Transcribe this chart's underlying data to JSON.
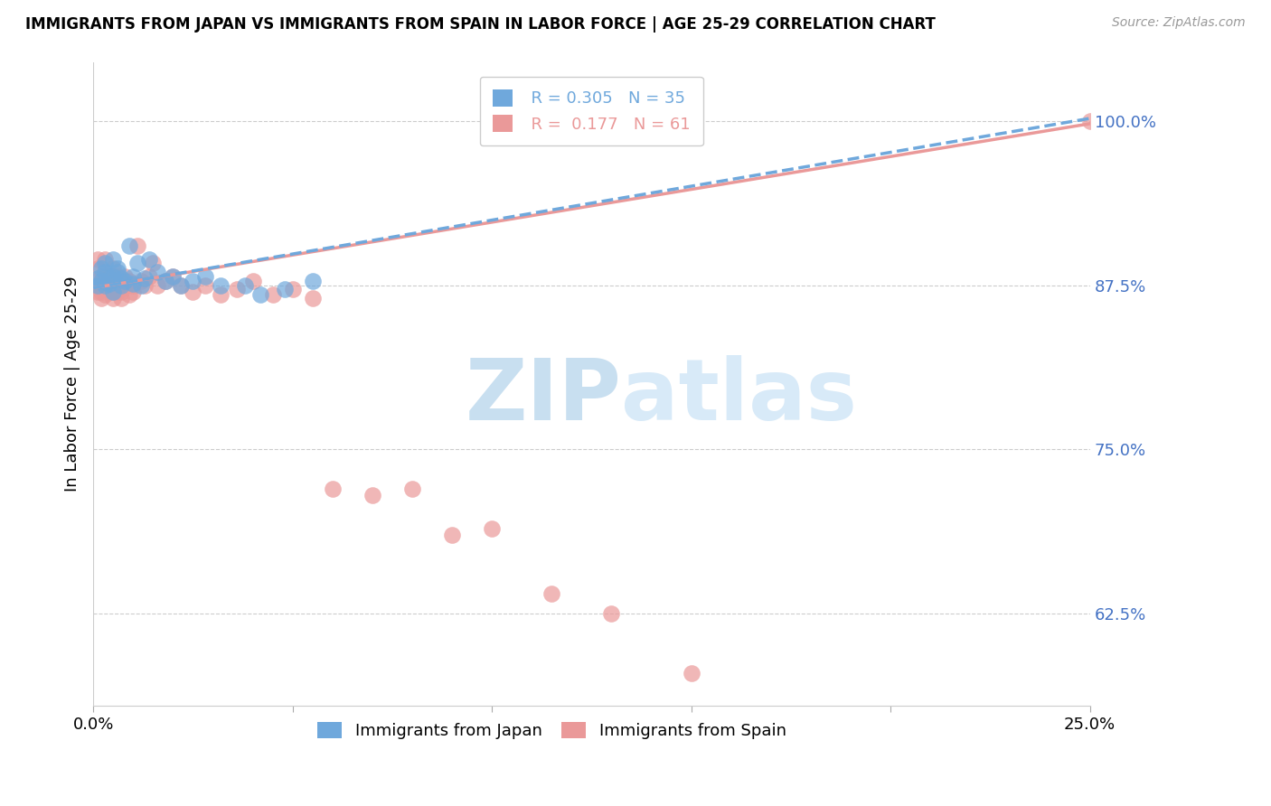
{
  "title": "IMMIGRANTS FROM JAPAN VS IMMIGRANTS FROM SPAIN IN LABOR FORCE | AGE 25-29 CORRELATION CHART",
  "source": "Source: ZipAtlas.com",
  "ylabel": "In Labor Force | Age 25-29",
  "xlim": [
    0.0,
    0.25
  ],
  "ylim": [
    0.555,
    1.045
  ],
  "xticks": [
    0.0,
    0.05,
    0.1,
    0.15,
    0.2,
    0.25
  ],
  "xticklabels": [
    "0.0%",
    "",
    "",
    "",
    "",
    "25.0%"
  ],
  "yticks_right": [
    0.625,
    0.75,
    0.875,
    1.0
  ],
  "ytick_labels_right": [
    "62.5%",
    "75.0%",
    "87.5%",
    "100.0%"
  ],
  "japan_color": "#6fa8dc",
  "spain_color": "#ea9999",
  "japan_R": 0.305,
  "japan_N": 35,
  "spain_R": 0.177,
  "spain_N": 61,
  "japan_scatter_x": [
    0.001,
    0.001,
    0.002,
    0.002,
    0.003,
    0.003,
    0.003,
    0.004,
    0.004,
    0.005,
    0.005,
    0.005,
    0.006,
    0.006,
    0.007,
    0.007,
    0.008,
    0.009,
    0.01,
    0.01,
    0.011,
    0.012,
    0.013,
    0.014,
    0.016,
    0.018,
    0.02,
    0.022,
    0.025,
    0.028,
    0.032,
    0.038,
    0.042,
    0.048,
    0.055
  ],
  "japan_scatter_y": [
    0.875,
    0.88,
    0.888,
    0.878,
    0.875,
    0.892,
    0.885,
    0.88,
    0.876,
    0.882,
    0.87,
    0.895,
    0.885,
    0.888,
    0.875,
    0.88,
    0.878,
    0.905,
    0.882,
    0.876,
    0.892,
    0.875,
    0.88,
    0.895,
    0.885,
    0.878,
    0.882,
    0.875,
    0.878,
    0.882,
    0.875,
    0.875,
    0.868,
    0.872,
    0.878
  ],
  "spain_scatter_x": [
    0.001,
    0.001,
    0.001,
    0.001,
    0.002,
    0.002,
    0.002,
    0.002,
    0.002,
    0.003,
    0.003,
    0.003,
    0.003,
    0.004,
    0.004,
    0.004,
    0.004,
    0.005,
    0.005,
    0.005,
    0.005,
    0.005,
    0.006,
    0.006,
    0.006,
    0.006,
    0.007,
    0.007,
    0.007,
    0.008,
    0.008,
    0.009,
    0.009,
    0.01,
    0.01,
    0.011,
    0.012,
    0.013,
    0.014,
    0.015,
    0.016,
    0.018,
    0.02,
    0.022,
    0.025,
    0.028,
    0.032,
    0.036,
    0.04,
    0.045,
    0.05,
    0.055,
    0.06,
    0.07,
    0.08,
    0.09,
    0.1,
    0.115,
    0.13,
    0.15,
    0.25
  ],
  "spain_scatter_y": [
    0.875,
    0.888,
    0.895,
    0.87,
    0.882,
    0.875,
    0.87,
    0.865,
    0.878,
    0.875,
    0.868,
    0.882,
    0.895,
    0.878,
    0.87,
    0.882,
    0.875,
    0.888,
    0.875,
    0.87,
    0.865,
    0.882,
    0.876,
    0.87,
    0.882,
    0.875,
    0.865,
    0.878,
    0.87,
    0.882,
    0.875,
    0.868,
    0.878,
    0.875,
    0.87,
    0.905,
    0.878,
    0.875,
    0.882,
    0.892,
    0.875,
    0.878,
    0.882,
    0.875,
    0.87,
    0.875,
    0.868,
    0.872,
    0.878,
    0.868,
    0.872,
    0.865,
    0.72,
    0.715,
    0.72,
    0.685,
    0.69,
    0.64,
    0.625,
    0.58,
    1.0
  ],
  "grid_color": "#cccccc",
  "background_color": "#ffffff",
  "watermark_text_zip": "ZIP",
  "watermark_text_atlas": "atlas",
  "watermark_color": "#ddeeff",
  "axis_color": "#4472c4",
  "trend_japan_x0": 0.0,
  "trend_japan_y0": 0.873,
  "trend_japan_x1": 0.25,
  "trend_japan_y1": 1.002,
  "trend_spain_x0": 0.0,
  "trend_spain_y0": 0.873,
  "trend_spain_x1": 0.25,
  "trend_spain_y1": 0.998
}
